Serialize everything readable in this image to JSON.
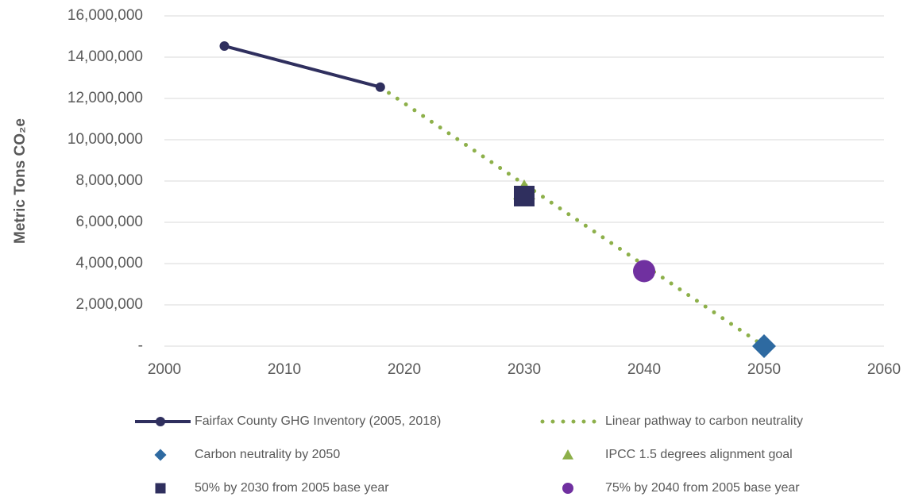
{
  "chart_data": {
    "type": "scatter",
    "y_label": "Metric Tons CO₂e",
    "xlim": [
      2000,
      2060
    ],
    "xticks": [
      2000,
      2010,
      2020,
      2030,
      2040,
      2050,
      2060
    ],
    "ylim": [
      0,
      16000000
    ],
    "yticks": [
      {
        "value": 0,
        "label": "-"
      },
      {
        "value": 2000000,
        "label": "2,000,000"
      },
      {
        "value": 4000000,
        "label": "4,000,000"
      },
      {
        "value": 6000000,
        "label": "6,000,000"
      },
      {
        "value": 8000000,
        "label": "8,000,000"
      },
      {
        "value": 10000000,
        "label": "10,000,000"
      },
      {
        "value": 12000000,
        "label": "12,000,000"
      },
      {
        "value": 14000000,
        "label": "14,000,000"
      },
      {
        "value": 16000000,
        "label": "16,000,000"
      }
    ],
    "grid": true,
    "series": [
      {
        "name": "Fairfax County GHG Inventory (2005, 2018)",
        "color": "#2f2f5e",
        "line": "solid",
        "marker": "circle",
        "x": [
          2005,
          2018
        ],
        "values": [
          14540000,
          12550000
        ]
      },
      {
        "name": "Linear pathway to carbon neutrality",
        "color": "#8db04a",
        "line": "dotted",
        "marker": "none",
        "x": [
          2018,
          2050
        ],
        "values": [
          12550000,
          0
        ]
      },
      {
        "name": "Carbon neutrality by 2050",
        "color": "#2e6aa1",
        "line": "none",
        "marker": "diamond",
        "x": [
          2050
        ],
        "values": [
          0
        ]
      },
      {
        "name": "IPCC 1.5 degrees alignment goal",
        "color": "#8db04a",
        "line": "none",
        "marker": "triangle",
        "x": [
          2030
        ],
        "values": [
          7540000
        ]
      },
      {
        "name": "50% by 2030 from 2005 base year",
        "color": "#2f2f5e",
        "line": "none",
        "marker": "square",
        "x": [
          2030
        ],
        "values": [
          7270000
        ]
      },
      {
        "name": "75% by 2040 from 2005 base year",
        "color": "#7030a0",
        "line": "none",
        "marker": "circle-big",
        "x": [
          2040
        ],
        "values": [
          3635000
        ]
      }
    ]
  }
}
